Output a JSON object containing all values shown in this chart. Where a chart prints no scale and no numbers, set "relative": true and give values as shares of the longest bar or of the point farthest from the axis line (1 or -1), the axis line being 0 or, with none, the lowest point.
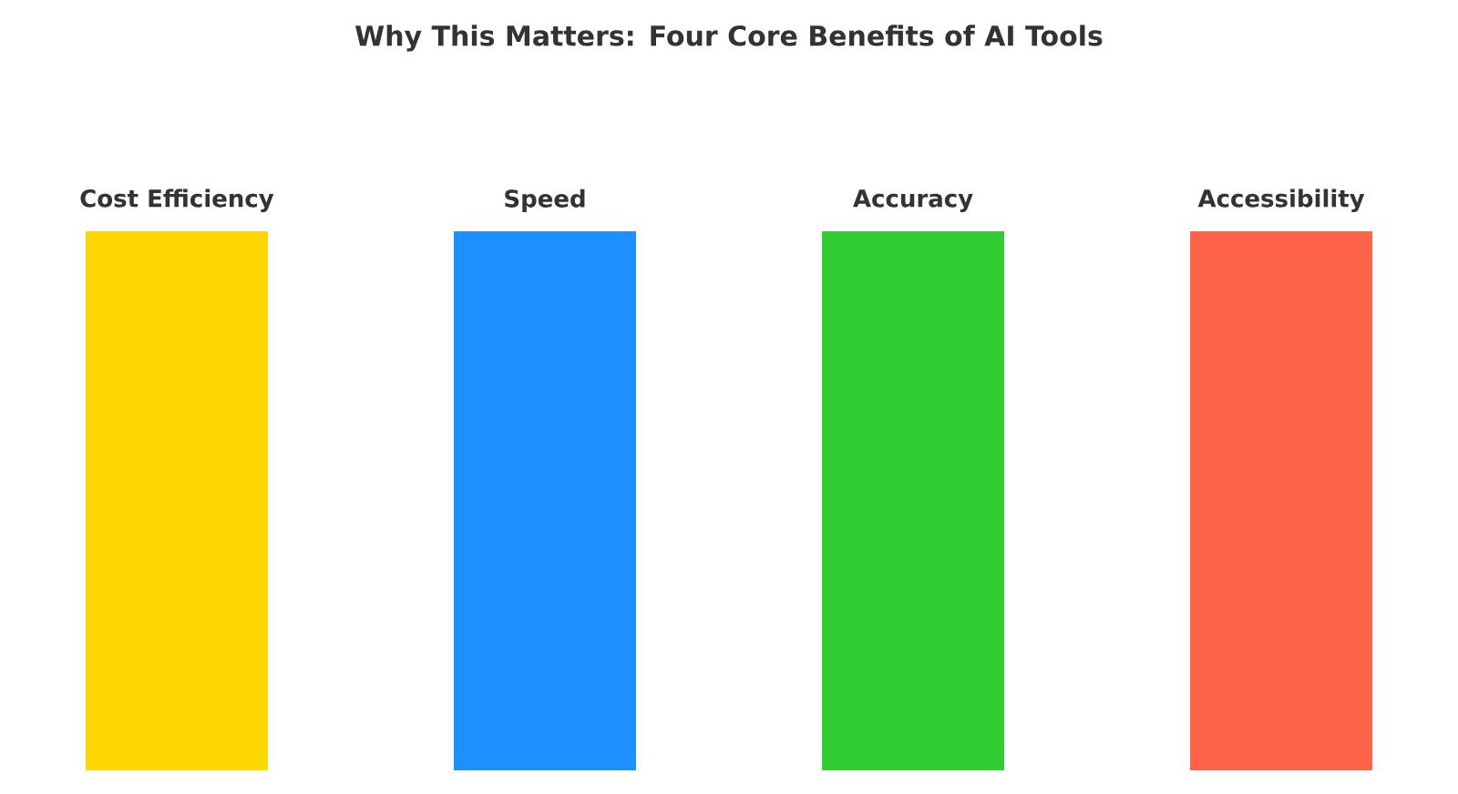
{
  "chart_data": {
    "type": "bar",
    "title": "Why This Matters: Four Core Benefits of AI Tools",
    "categories": [
      "Cost Efficiency",
      "Speed",
      "Accuracy",
      "Accessibility"
    ],
    "values": [
      1,
      1,
      1,
      1
    ],
    "colors": [
      "#ffd700",
      "#1e90ff",
      "#32cd32",
      "#ff6347"
    ],
    "relative": true
  }
}
